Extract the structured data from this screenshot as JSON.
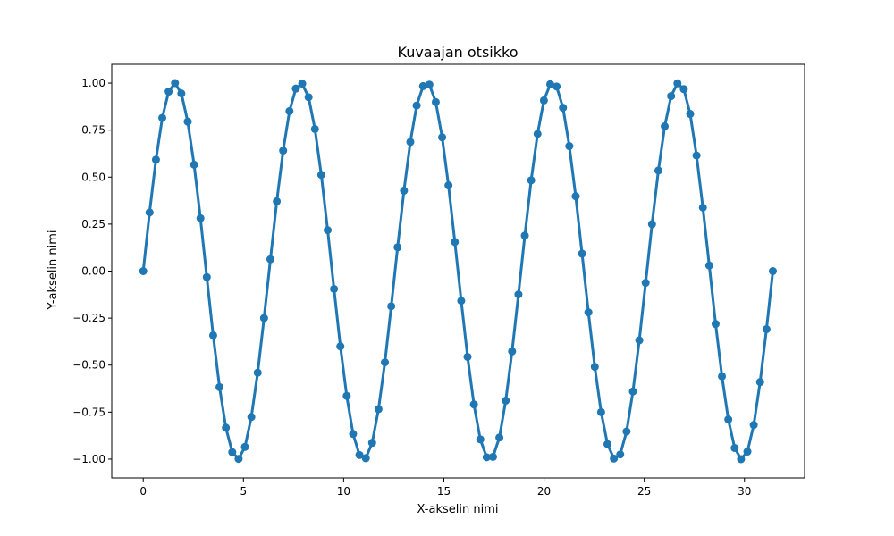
{
  "chart_data": {
    "type": "line",
    "title": "Kuvaajan otsikko",
    "xlabel": "X-akselin nimi",
    "ylabel": "Y-akselin nimi",
    "xlim": [
      -1.57,
      33.0
    ],
    "ylim": [
      -1.1,
      1.1
    ],
    "xticks": [
      0,
      5,
      10,
      15,
      20,
      25,
      30
    ],
    "xtick_labels": [
      "0",
      "5",
      "10",
      "15",
      "20",
      "25",
      "30"
    ],
    "yticks": [
      -1.0,
      -0.75,
      -0.5,
      -0.25,
      0.0,
      0.25,
      0.5,
      0.75,
      1.0
    ],
    "ytick_labels": [
      "−1.00",
      "−0.75",
      "−0.50",
      "−0.25",
      "0.00",
      "0.25",
      "0.50",
      "0.75",
      "1.00"
    ],
    "grid": false,
    "legend": "none",
    "color": "#1f77b4",
    "series": [
      {
        "x": [
          0.0,
          0.317,
          0.635,
          0.952,
          1.269,
          1.587,
          1.904,
          2.221,
          2.539,
          2.856,
          3.173,
          3.491,
          3.808,
          4.125,
          4.443,
          4.76,
          5.077,
          5.395,
          5.712,
          6.029,
          6.347,
          6.664,
          6.981,
          7.299,
          7.616,
          7.933,
          8.251,
          8.568,
          8.885,
          9.203,
          9.52,
          9.837,
          10.155,
          10.472,
          10.789,
          11.107,
          11.424,
          11.741,
          12.059,
          12.376,
          12.693,
          13.011,
          13.328,
          13.645,
          13.963,
          14.28,
          14.597,
          14.915,
          15.232,
          15.549,
          15.867,
          16.184,
          16.501,
          16.819,
          17.136,
          17.453,
          17.771,
          18.088,
          18.405,
          18.723,
          19.04,
          19.357,
          19.675,
          19.992,
          20.309,
          20.627,
          20.944,
          21.261,
          21.579,
          21.896,
          22.213,
          22.531,
          22.848,
          23.165,
          23.483,
          23.8,
          24.117,
          24.435,
          24.752,
          25.069,
          25.387,
          25.704,
          26.021,
          26.339,
          26.656,
          26.973,
          27.291,
          27.608,
          27.925,
          28.243,
          28.56,
          28.877,
          29.195,
          29.512,
          29.829,
          30.147,
          30.464,
          30.781,
          31.099,
          31.416
        ],
        "y": [
          0.0,
          0.312,
          0.593,
          0.815,
          0.955,
          1.0,
          0.945,
          0.795,
          0.566,
          0.281,
          -0.032,
          -0.342,
          -0.617,
          -0.833,
          -0.963,
          -0.999,
          -0.935,
          -0.776,
          -0.54,
          -0.25,
          0.063,
          0.371,
          0.641,
          0.851,
          0.971,
          0.997,
          0.925,
          0.756,
          0.512,
          0.218,
          -0.095,
          -0.4,
          -0.664,
          -0.866,
          -0.978,
          -0.995,
          -0.913,
          -0.734,
          -0.485,
          -0.187,
          0.127,
          0.428,
          0.687,
          0.881,
          0.984,
          0.992,
          0.899,
          0.712,
          0.456,
          0.155,
          -0.158,
          -0.456,
          -0.709,
          -0.895,
          -0.99,
          -0.988,
          -0.885,
          -0.689,
          -0.427,
          -0.124,
          0.189,
          0.483,
          0.73,
          0.908,
          0.994,
          0.982,
          0.869,
          0.665,
          0.398,
          0.093,
          -0.219,
          -0.509,
          -0.75,
          -0.92,
          -0.997,
          -0.975,
          -0.853,
          -0.64,
          -0.368,
          -0.062,
          0.25,
          0.535,
          0.77,
          0.931,
          0.999,
          0.968,
          0.836,
          0.615,
          0.338,
          0.03,
          -0.281,
          -0.56,
          -0.789,
          -0.941,
          -1.0,
          -0.96,
          -0.818,
          -0.59,
          -0.309,
          0.0
        ]
      }
    ]
  }
}
